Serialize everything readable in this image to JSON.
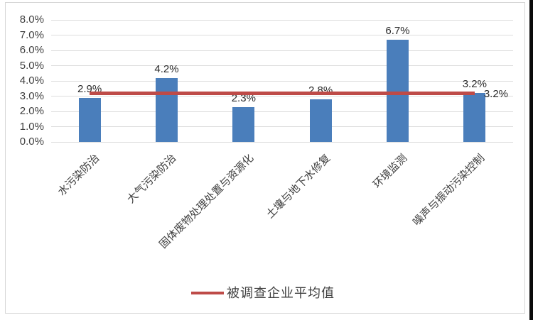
{
  "chart_data": {
    "type": "bar",
    "title": "",
    "xlabel": "",
    "ylabel": "",
    "categories": [
      "水污染防治",
      "大气污染防治",
      "固体废物处理处置与资源化",
      "土壤与地下水修复",
      "环境监测",
      "噪声与振动污染控制"
    ],
    "values": [
      2.9,
      4.2,
      2.3,
      2.8,
      6.7,
      3.2
    ],
    "value_labels": [
      "2.9%",
      "4.2%",
      "2.3%",
      "2.8%",
      "6.7%",
      "3.2%"
    ],
    "y_ticks": [
      "0.0%",
      "1.0%",
      "2.0%",
      "3.0%",
      "4.0%",
      "5.0%",
      "6.0%",
      "7.0%",
      "8.0%"
    ],
    "ylim": [
      0,
      8
    ],
    "grid": true,
    "bar_color": "#4A7EBB",
    "average_line": {
      "value": 3.2,
      "label": "3.2%",
      "color": "#BE4B48"
    },
    "legend": {
      "position": "bottom",
      "entries": [
        {
          "label": "被调查企业平均值",
          "marker": "line",
          "color": "#BE4B48"
        }
      ]
    }
  }
}
